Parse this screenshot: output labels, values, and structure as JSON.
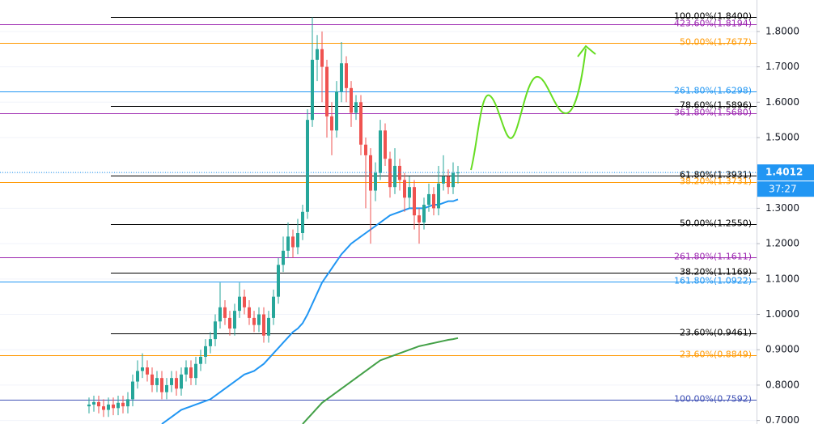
{
  "chart_data": {
    "type": "candlestick",
    "ylim": [
      0.69,
      1.889
    ],
    "yticks": [
      {
        "value": 0.7,
        "label": "0.7000"
      },
      {
        "value": 0.8,
        "label": "0.8000"
      },
      {
        "value": 0.9,
        "label": "0.9000"
      },
      {
        "value": 1.0,
        "label": "1.0000"
      },
      {
        "value": 1.1,
        "label": "1.1000"
      },
      {
        "value": 1.2,
        "label": "1.2000"
      },
      {
        "value": 1.3,
        "label": "1.3000"
      },
      {
        "value": 1.4,
        "label": "1.4000"
      },
      {
        "value": 1.5,
        "label": "1.5000"
      },
      {
        "value": 1.6,
        "label": "1.6000"
      },
      {
        "value": 1.7,
        "label": "1.7000"
      },
      {
        "value": 1.8,
        "label": "1.8000"
      }
    ],
    "grid": true,
    "up_color": "#26a69a",
    "down_color": "#ef5350",
    "ohlc": [
      [
        0.74,
        0.765,
        0.72,
        0.745
      ],
      [
        0.745,
        0.77,
        0.725,
        0.752
      ],
      [
        0.752,
        0.77,
        0.72,
        0.74
      ],
      [
        0.74,
        0.76,
        0.71,
        0.73
      ],
      [
        0.73,
        0.765,
        0.71,
        0.745
      ],
      [
        0.745,
        0.765,
        0.715,
        0.735
      ],
      [
        0.735,
        0.77,
        0.715,
        0.75
      ],
      [
        0.75,
        0.77,
        0.72,
        0.74
      ],
      [
        0.74,
        0.78,
        0.72,
        0.76
      ],
      [
        0.76,
        0.83,
        0.74,
        0.81
      ],
      [
        0.81,
        0.87,
        0.79,
        0.84
      ],
      [
        0.84,
        0.89,
        0.82,
        0.85
      ],
      [
        0.85,
        0.87,
        0.81,
        0.83
      ],
      [
        0.83,
        0.85,
        0.78,
        0.8
      ],
      [
        0.8,
        0.84,
        0.78,
        0.82
      ],
      [
        0.82,
        0.84,
        0.76,
        0.78
      ],
      [
        0.78,
        0.82,
        0.76,
        0.8
      ],
      [
        0.8,
        0.84,
        0.78,
        0.82
      ],
      [
        0.82,
        0.84,
        0.77,
        0.79
      ],
      [
        0.79,
        0.85,
        0.77,
        0.83
      ],
      [
        0.83,
        0.87,
        0.81,
        0.85
      ],
      [
        0.85,
        0.87,
        0.8,
        0.82
      ],
      [
        0.82,
        0.88,
        0.8,
        0.86
      ],
      [
        0.86,
        0.9,
        0.84,
        0.88
      ],
      [
        0.88,
        0.93,
        0.86,
        0.91
      ],
      [
        0.91,
        0.95,
        0.89,
        0.93
      ],
      [
        0.93,
        1.0,
        0.91,
        0.98
      ],
      [
        0.98,
        1.09,
        0.96,
        1.02
      ],
      [
        1.02,
        1.04,
        0.97,
        0.99
      ],
      [
        0.99,
        1.01,
        0.94,
        0.96
      ],
      [
        0.96,
        1.03,
        0.94,
        1.01
      ],
      [
        1.01,
        1.09,
        0.99,
        1.05
      ],
      [
        1.05,
        1.07,
        1.0,
        1.02
      ],
      [
        1.02,
        1.04,
        0.97,
        0.99
      ],
      [
        0.99,
        1.01,
        0.95,
        0.97
      ],
      [
        0.97,
        1.02,
        0.95,
        1.0
      ],
      [
        1.0,
        1.02,
        0.92,
        0.94
      ],
      [
        0.94,
        1.01,
        0.92,
        0.99
      ],
      [
        0.99,
        1.07,
        0.97,
        1.05
      ],
      [
        1.05,
        1.16,
        1.03,
        1.14
      ],
      [
        1.14,
        1.22,
        1.12,
        1.18
      ],
      [
        1.18,
        1.26,
        1.16,
        1.22
      ],
      [
        1.22,
        1.24,
        1.16,
        1.19
      ],
      [
        1.19,
        1.27,
        1.17,
        1.23
      ],
      [
        1.23,
        1.31,
        1.21,
        1.29
      ],
      [
        1.29,
        1.58,
        1.27,
        1.55
      ],
      [
        1.55,
        1.84,
        1.53,
        1.72
      ],
      [
        1.72,
        1.79,
        1.66,
        1.75
      ],
      [
        1.75,
        1.8,
        1.6,
        1.7
      ],
      [
        1.7,
        1.72,
        1.5,
        1.56
      ],
      [
        1.56,
        1.6,
        1.45,
        1.52
      ],
      [
        1.52,
        1.66,
        1.5,
        1.63
      ],
      [
        1.63,
        1.77,
        1.6,
        1.71
      ],
      [
        1.71,
        1.73,
        1.6,
        1.64
      ],
      [
        1.64,
        1.66,
        1.53,
        1.57
      ],
      [
        1.57,
        1.62,
        1.55,
        1.6
      ],
      [
        1.6,
        1.62,
        1.45,
        1.48
      ],
      [
        1.48,
        1.5,
        1.3,
        1.45
      ],
      [
        1.45,
        1.47,
        1.2,
        1.35
      ],
      [
        1.35,
        1.43,
        1.32,
        1.4
      ],
      [
        1.4,
        1.55,
        1.38,
        1.52
      ],
      [
        1.52,
        1.54,
        1.42,
        1.44
      ],
      [
        1.44,
        1.46,
        1.33,
        1.36
      ],
      [
        1.36,
        1.47,
        1.34,
        1.42
      ],
      [
        1.42,
        1.44,
        1.35,
        1.38
      ],
      [
        1.38,
        1.4,
        1.29,
        1.33
      ],
      [
        1.33,
        1.39,
        1.3,
        1.36
      ],
      [
        1.36,
        1.38,
        1.24,
        1.28
      ],
      [
        1.28,
        1.3,
        1.2,
        1.26
      ],
      [
        1.26,
        1.33,
        1.24,
        1.31
      ],
      [
        1.31,
        1.37,
        1.29,
        1.34
      ],
      [
        1.34,
        1.36,
        1.28,
        1.3
      ],
      [
        1.3,
        1.42,
        1.28,
        1.37
      ],
      [
        1.37,
        1.45,
        1.35,
        1.39
      ],
      [
        1.39,
        1.41,
        1.34,
        1.36
      ],
      [
        1.36,
        1.43,
        1.34,
        1.4
      ],
      [
        1.4,
        1.42,
        1.37,
        1.4012
      ]
    ],
    "moving_averages": [
      {
        "color": "#2196f3",
        "values": [
          null,
          null,
          null,
          null,
          null,
          null,
          null,
          null,
          null,
          null,
          null,
          null,
          null,
          null,
          null,
          0.69,
          0.7,
          0.71,
          0.72,
          0.73,
          0.735,
          0.74,
          0.745,
          0.75,
          0.755,
          0.76,
          0.77,
          0.78,
          0.79,
          0.8,
          0.81,
          0.82,
          0.83,
          0.835,
          0.84,
          0.85,
          0.86,
          0.875,
          0.89,
          0.905,
          0.92,
          0.935,
          0.95,
          0.96,
          0.975,
          1.0,
          1.03,
          1.06,
          1.09,
          1.11,
          1.13,
          1.15,
          1.17,
          1.185,
          1.2,
          1.21,
          1.22,
          1.23,
          1.24,
          1.25,
          1.26,
          1.27,
          1.28,
          1.285,
          1.29,
          1.295,
          1.3,
          1.3,
          1.3,
          1.3,
          1.305,
          1.31,
          1.31,
          1.315,
          1.32,
          1.32,
          1.325
        ]
      },
      {
        "color": "#43a047",
        "values": [
          null,
          null,
          null,
          null,
          null,
          null,
          null,
          null,
          null,
          null,
          null,
          null,
          null,
          null,
          null,
          null,
          null,
          null,
          null,
          null,
          null,
          null,
          null,
          null,
          null,
          null,
          null,
          null,
          null,
          null,
          null,
          null,
          null,
          null,
          null,
          null,
          null,
          null,
          null,
          null,
          null,
          null,
          null,
          null,
          0.69,
          0.705,
          0.72,
          0.735,
          0.75,
          0.76,
          0.77,
          0.78,
          0.79,
          0.8,
          0.81,
          0.82,
          0.83,
          0.84,
          0.85,
          0.86,
          0.87,
          0.875,
          0.88,
          0.885,
          0.89,
          0.895,
          0.9,
          0.905,
          0.91,
          0.913,
          0.916,
          0.919,
          0.922,
          0.925,
          0.928,
          0.93,
          0.933
        ]
      }
    ],
    "fib_levels": [
      {
        "label": "100.00%(1.8400)",
        "value": 1.84,
        "color": "#000000"
      },
      {
        "label": "423.60%(1.8194)",
        "value": 1.8194,
        "color": "#9c27b0"
      },
      {
        "label": "50.00%(1.7677)",
        "value": 1.7677,
        "color": "#ff9800"
      },
      {
        "label": "261.80%(1.6298)",
        "value": 1.6298,
        "color": "#2196f3"
      },
      {
        "label": "78.60%(1.5896)",
        "value": 1.5896,
        "color": "#000000"
      },
      {
        "label": "361.80%(1.5680)",
        "value": 1.568,
        "color": "#9c27b0"
      },
      {
        "label": "61.80%(1.3931)",
        "value": 1.3931,
        "color": "#000000"
      },
      {
        "label": "38.20%(1.3731)",
        "value": 1.3731,
        "color": "#ff9800"
      },
      {
        "label": "50.00%(1.2550)",
        "value": 1.255,
        "color": "#000000"
      },
      {
        "label": "261.80%(1.1611)",
        "value": 1.1611,
        "color": "#9c27b0"
      },
      {
        "label": "38.20%(1.1169)",
        "value": 1.1169,
        "color": "#000000"
      },
      {
        "label": "161.80%(1.0922)",
        "value": 1.0922,
        "color": "#2196f3"
      },
      {
        "label": "23.60%(0.9461)",
        "value": 0.9461,
        "color": "#000000"
      },
      {
        "label": "23.60%(0.8849)",
        "value": 0.8849,
        "color": "#ff9800"
      },
      {
        "label": "100.00%(0.7592)",
        "value": 0.7592,
        "color": "#3f51b5"
      }
    ],
    "last_price": 1.4012,
    "last_price_color": "#2196f3",
    "timer": "37:27"
  }
}
